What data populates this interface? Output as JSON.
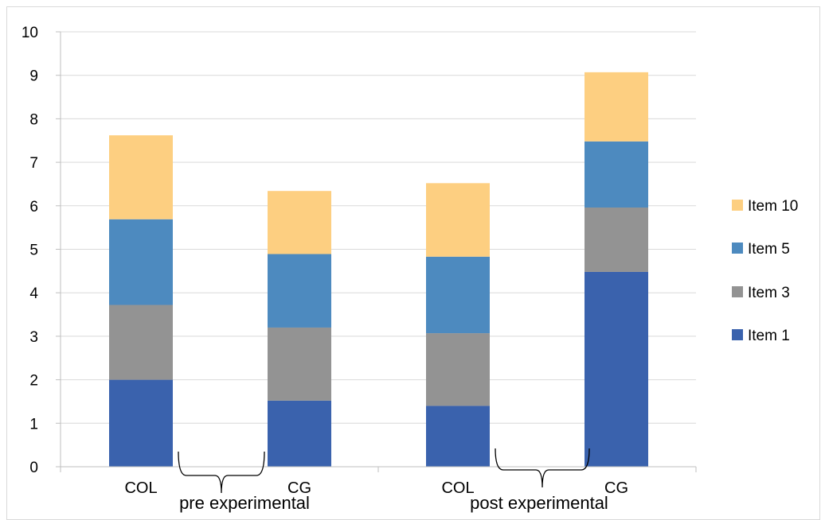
{
  "chart_data": {
    "type": "bar",
    "stacked": true,
    "categories": [
      "COL",
      "CG",
      "COL",
      "CG"
    ],
    "groups": [
      {
        "label": "pre experimental",
        "categories": [
          0,
          1
        ]
      },
      {
        "label": "post experimental",
        "categories": [
          2,
          3
        ]
      }
    ],
    "series": [
      {
        "name": "Item 1",
        "color": "#3a62ad",
        "values": [
          2.0,
          1.52,
          1.4,
          4.48
        ]
      },
      {
        "name": "Item 3",
        "color": "#939393",
        "values": [
          1.72,
          1.68,
          1.67,
          1.48
        ]
      },
      {
        "name": "Item 5",
        "color": "#4d8abf",
        "values": [
          1.97,
          1.69,
          1.76,
          1.52
        ]
      },
      {
        "name": "Item 10",
        "color": "#fdcf81",
        "values": [
          1.93,
          1.45,
          1.69,
          1.59
        ]
      }
    ],
    "yticks": [
      0,
      1,
      2,
      3,
      4,
      5,
      6,
      7,
      8,
      9,
      10
    ],
    "ylim": [
      0,
      10
    ],
    "grid": true,
    "legend": {
      "position": "right",
      "order": [
        "Item 10",
        "Item 5",
        "Item 3",
        "Item 1"
      ]
    }
  }
}
